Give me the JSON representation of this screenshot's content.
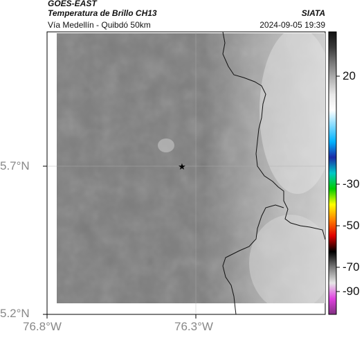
{
  "header": {
    "satellite": "GOES-EAST",
    "product": "Temperatura de Brillo CH13",
    "route": "Vía Medellín - Quibdó 50km",
    "agency": "SIATA",
    "datetime": "2024-09-05 19:39"
  },
  "axes": {
    "x_ticks": [
      "76.8°W",
      "76.3°W"
    ],
    "y_ticks": [
      "5.7°N",
      "5.2°N"
    ]
  },
  "colorbar": {
    "labels": [
      "20",
      "-30",
      "-50",
      "-70",
      "-90"
    ],
    "stops": [
      "#111111",
      "#3a3a3a",
      "#7a7a7a",
      "#b4b4b4",
      "#e8e8e8",
      "#ffffff",
      "#7fd9ff",
      "#00b3ff",
      "#1a2aa6",
      "#00c8c8",
      "#00cc00",
      "#ffff00",
      "#ff7f00",
      "#e00000",
      "#000000",
      "#7a7a7a",
      "#e6e6e6",
      "#e040e0",
      "#803080"
    ]
  },
  "marker": {
    "symbol": "★"
  }
}
